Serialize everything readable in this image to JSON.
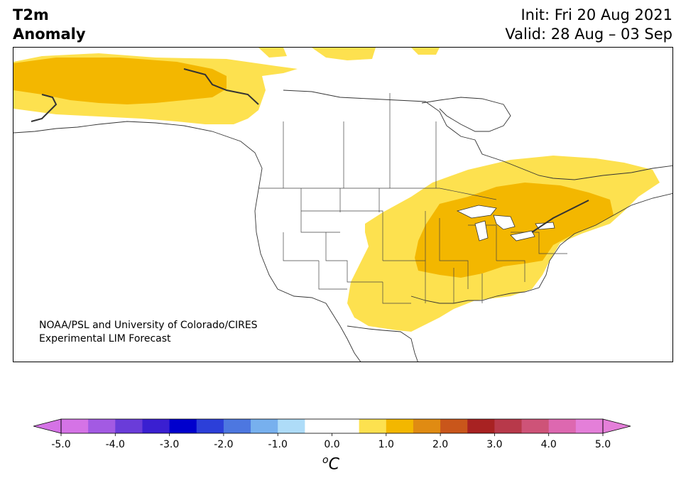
{
  "title": {
    "line1": "T2m",
    "line2": "Anomaly",
    "init": "Init: Fri 20 Aug 2021",
    "valid": "Valid: 28 Aug – 03 Sep"
  },
  "credit": {
    "line1": "NOAA/PSL and University of Colorado/CIRES",
    "line2": "Experimental LIM Forecast"
  },
  "colorbar": {
    "unit_base": "C",
    "unit_super": "o",
    "tick_labels": [
      "-5.0",
      "-4.0",
      "-3.0",
      "-2.0",
      "-1.0",
      "0.0",
      "1.0",
      "2.0",
      "3.0",
      "4.0",
      "5.0"
    ],
    "colors": [
      "#d573e6",
      "#a35ae3",
      "#6a3cd9",
      "#3a1fd1",
      "#0000cd",
      "#2c3fd9",
      "#4d77e0",
      "#77b0ee",
      "#aedcf8",
      "#ffffff",
      "#ffffff",
      "#fde14f",
      "#f3b700",
      "#e08b12",
      "#c9561b",
      "#a82222",
      "#b8394a",
      "#ce5378",
      "#dd68b0",
      "#e47fd9"
    ],
    "extend_low_color": "#d573e6",
    "extend_high_color": "#e47fd9"
  },
  "map": {
    "region": "North America",
    "anomaly_colors": {
      "plus_0_5_to_1": "#fde14f",
      "plus_1_to_1_5": "#f3b700",
      "plus_1_5_to_2": "#e08b12"
    }
  }
}
